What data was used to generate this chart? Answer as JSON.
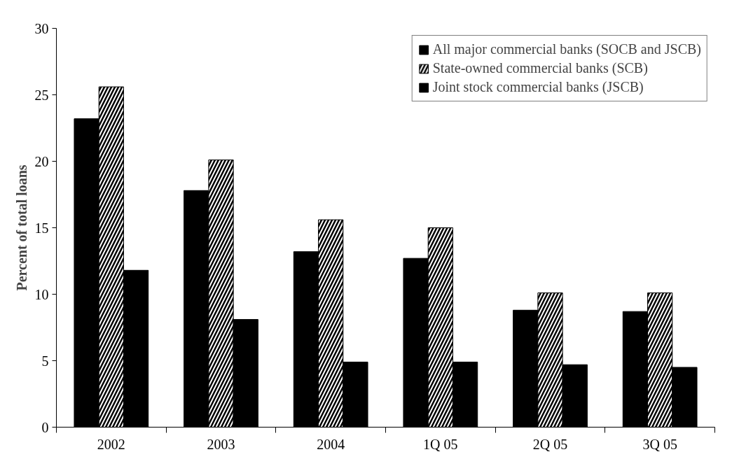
{
  "chart_data": {
    "type": "bar",
    "ylabel": "Percent of total loans",
    "categories": [
      "2002",
      "2003",
      "2004",
      "1Q 05",
      "2Q 05",
      "3Q 05"
    ],
    "series": [
      {
        "name": "All major commercial banks (SOCB and JSCB)",
        "color": "#000000",
        "values": [
          23.2,
          17.8,
          13.2,
          12.7,
          8.8,
          8.7
        ]
      },
      {
        "name": "State-owned commercial banks (SCB)",
        "color": "#000000",
        "values": [
          25.6,
          20.1,
          15.6,
          15.0,
          10.1,
          10.1
        ]
      },
      {
        "name": "Joint stock commercial banks (JSCB)",
        "color": "#000000",
        "values": [
          11.8,
          8.1,
          4.9,
          4.9,
          4.7,
          4.5
        ]
      }
    ],
    "ylim": [
      0,
      30
    ],
    "yticks": [
      0,
      5,
      10,
      15,
      20,
      25,
      30
    ],
    "grid": false,
    "legend": "top right"
  }
}
